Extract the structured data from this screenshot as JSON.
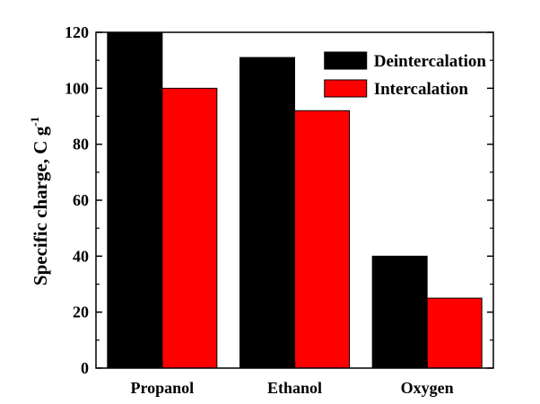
{
  "chart_data": {
    "type": "bar",
    "title": "",
    "xlabel": "",
    "ylabel": "Specific charge, C g",
    "ylabel_superscript": "-1",
    "categories": [
      "Propanol",
      "Ethanol",
      "Oxygen"
    ],
    "series": [
      {
        "name": "Deintercalation",
        "color": "#000000",
        "values": [
          120,
          111,
          40
        ]
      },
      {
        "name": "Intercalation",
        "color": "#ff0000",
        "values": [
          100,
          92,
          25
        ]
      }
    ],
    "ylim": [
      0,
      120
    ],
    "yticks": [
      0,
      20,
      40,
      60,
      80,
      100,
      120
    ],
    "legend_position": "top-right",
    "grid": false
  }
}
